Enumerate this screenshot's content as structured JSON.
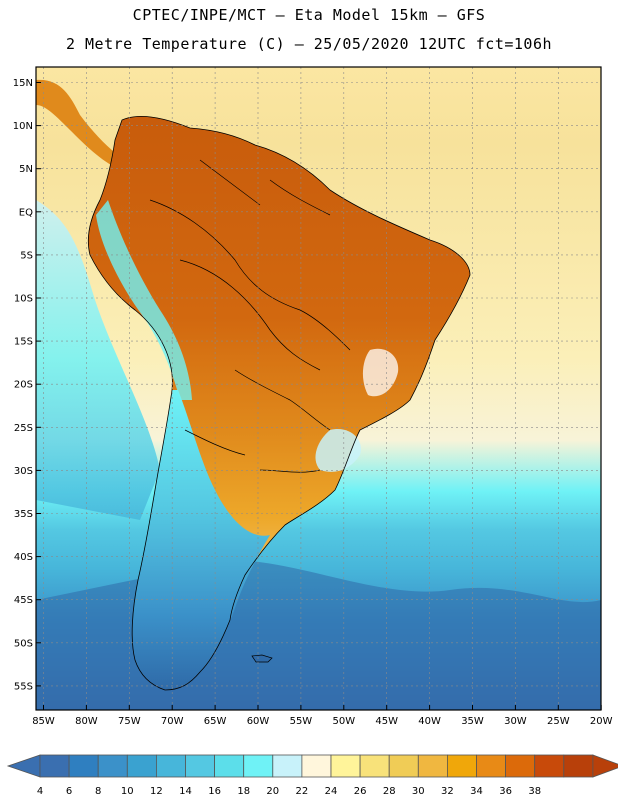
{
  "header": {
    "line1": "CPTEC/INPE/MCT —  Eta Model 15km — GFS",
    "line2": "2 Metre Temperature (C) — 25/05/2020 12UTC fct=106h"
  },
  "axes": {
    "lat_labels": [
      "15N",
      "10N",
      "5N",
      "EQ",
      "5S",
      "10S",
      "15S",
      "20S",
      "25S",
      "30S",
      "35S",
      "40S",
      "45S",
      "50S",
      "55S"
    ],
    "lon_labels": [
      "85W",
      "80W",
      "75W",
      "70W",
      "65W",
      "60W",
      "55W",
      "50W",
      "45W",
      "40W",
      "35W",
      "30W",
      "25W",
      "20W"
    ]
  },
  "colorbar": {
    "values": [
      "4",
      "6",
      "8",
      "10",
      "12",
      "14",
      "16",
      "18",
      "20",
      "22",
      "24",
      "26",
      "28",
      "30",
      "32",
      "34",
      "36",
      "38"
    ],
    "colors": [
      "#3a6fb0",
      "#2f7fc0",
      "#3b91c9",
      "#3aa2d0",
      "#47b6da",
      "#54c8e2",
      "#5cdeea",
      "#6ff2f6",
      "#c8f2fa",
      "#fff6dc",
      "#fff49a",
      "#f8e27a",
      "#f0cc56",
      "#f0b740",
      "#f0a70a",
      "#e88a16",
      "#dc6a0a",
      "#c84a0a",
      "#b8400a"
    ],
    "left_arrow_color": "#3a6fb0",
    "right_arrow_color": "#b8400a"
  },
  "map": {
    "ocean_north_color": "#fbe6a2",
    "ocean_south_color": "#3a6fb0",
    "land_hot_color": "#d2680f",
    "land_mild_color": "#eda82a"
  }
}
